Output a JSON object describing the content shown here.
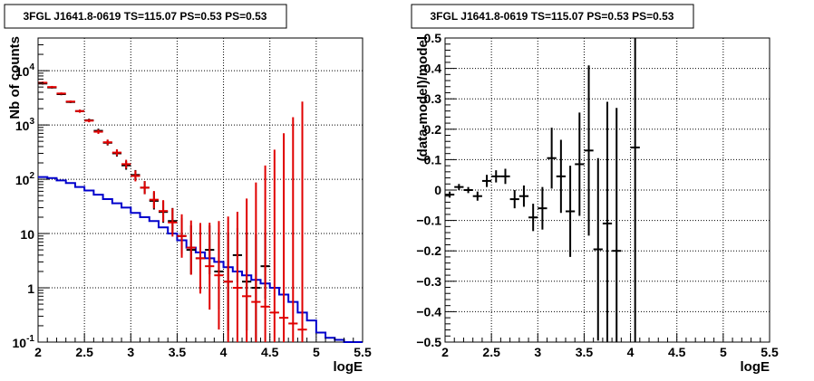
{
  "colors": {
    "model": "#e00000",
    "data": "#000000",
    "background": "#0000cc"
  },
  "chart_data": [
    {
      "type": "line",
      "title": "3FGL J1641.8-0619 TS=115.07 PS=0.53 PS=0.53",
      "xlabel": "logE",
      "ylabel": "Nb of counts",
      "xlim": [
        2,
        5.5
      ],
      "ylim": [
        0.1,
        40000
      ],
      "yscale": "log",
      "grid": true,
      "x_ticks": [
        "2",
        "2.5",
        "3",
        "3.5",
        "4",
        "4.5",
        "5",
        "5.5"
      ],
      "y_ticks": [
        "10^-1",
        "1",
        "10",
        "10^2",
        "10^3",
        "10^4"
      ],
      "series": [
        {
          "style": "step",
          "x": [
            2.0,
            2.1,
            2.2,
            2.3,
            2.4,
            2.5,
            2.6,
            2.7,
            2.8,
            2.9,
            3.0,
            3.1,
            3.2,
            3.3,
            3.4,
            3.5,
            3.6,
            3.7,
            3.8,
            3.9,
            4.0,
            4.1,
            4.2,
            4.3,
            4.4,
            4.5,
            4.6,
            4.7,
            4.8,
            4.9,
            5.0,
            5.1,
            5.2,
            5.3,
            5.4
          ],
          "y": [
            110,
            105,
            95,
            85,
            72,
            62,
            52,
            43,
            36,
            30,
            24,
            20,
            17,
            13,
            10,
            7.5,
            5.5,
            4.5,
            3.5,
            3,
            2.4,
            2,
            1.7,
            1.4,
            1.2,
            1,
            0.75,
            0.55,
            0.35,
            0.25,
            0.15,
            0.12,
            0.11,
            0.1,
            0.1
          ]
        },
        {
          "style": "markers-error",
          "x": [
            2.05,
            2.15,
            2.25,
            2.35,
            2.45,
            2.55,
            2.65,
            2.75,
            2.85,
            2.95,
            3.05,
            3.15,
            3.25,
            3.35,
            3.45,
            3.55,
            3.65,
            3.75,
            3.85,
            3.95,
            4.05,
            4.15,
            4.25,
            4.35,
            4.45,
            4.55,
            4.65,
            4.75,
            4.85
          ],
          "y": [
            6000,
            5000,
            3800,
            2700,
            1800,
            1200,
            750,
            480,
            310,
            190,
            115,
            70,
            42,
            26,
            16,
            9,
            5.5,
            3.5,
            2.5,
            1.7,
            1.3,
            1,
            0.7,
            0.55,
            0.45,
            0.35,
            0.28,
            0.22,
            0.17
          ],
          "err": [
            0.02,
            0.02,
            0.02,
            0.02,
            0.03,
            0.03,
            0.04,
            0.05,
            0.06,
            0.08,
            0.1,
            0.12,
            0.16,
            0.2,
            0.26,
            0.4,
            0.5,
            0.65,
            0.8,
            1,
            1.2,
            1.4,
            1.8,
            2.2,
            2.6,
            3,
            3.4,
            3.8,
            4.2
          ]
        },
        {
          "style": "markers-error",
          "x": [
            2.05,
            2.15,
            2.25,
            2.35,
            2.45,
            2.55,
            2.65,
            2.75,
            2.85,
            2.95,
            3.05,
            3.15,
            3.25,
            3.35,
            3.45,
            3.55,
            3.65,
            3.75,
            3.85,
            3.95,
            4.05,
            4.15,
            4.25,
            4.35,
            4.45
          ],
          "y": [
            5800,
            4900,
            3700,
            2650,
            1800,
            1220,
            780,
            470,
            300,
            180,
            120,
            70,
            40,
            25,
            17,
            9,
            5,
            3.5,
            5,
            2,
            1.3,
            4,
            1.3,
            1,
            2.5
          ],
          "err": [
            0.02,
            0.02,
            0.02,
            0.02,
            0.02,
            0.03,
            0.04,
            0.05,
            0.06,
            0.08,
            0.09,
            0.12,
            0.16,
            0.2,
            0.24,
            0.33,
            0.45,
            0.55,
            0.45,
            0.7,
            0.9,
            0.5,
            0.9,
            1.0,
            0.6
          ]
        }
      ]
    },
    {
      "type": "scatter",
      "title": "3FGL J1641.8-0619 TS=115.07 PS=0.53 PS=0.53",
      "xlabel": "logE",
      "ylabel": "(data-model)/model",
      "xlim": [
        2,
        5.5
      ],
      "ylim": [
        -0.5,
        0.5
      ],
      "grid": true,
      "x_ticks": [
        "2",
        "2.5",
        "3",
        "3.5",
        "4",
        "4.5",
        "5",
        "5.5"
      ],
      "y_ticks": [
        "−0.5",
        "−0.4",
        "−0.3",
        "−0.2",
        "−0.1",
        "0",
        "0.1",
        "0.2",
        "0.3",
        "0.4",
        "0.5"
      ],
      "x": [
        2.05,
        2.15,
        2.25,
        2.35,
        2.45,
        2.55,
        2.65,
        2.75,
        2.85,
        2.95,
        3.05,
        3.15,
        3.25,
        3.35,
        3.45,
        3.55,
        3.65,
        3.75,
        3.85,
        4.05
      ],
      "y": [
        -0.015,
        0.01,
        0.0,
        -0.02,
        0.03,
        0.045,
        0.045,
        -0.03,
        -0.02,
        -0.09,
        -0.06,
        0.105,
        0.045,
        -0.07,
        0.085,
        0.13,
        -0.195,
        -0.11,
        -0.2,
        0.14
      ],
      "err": [
        0.01,
        0.01,
        0.01,
        0.015,
        0.02,
        0.02,
        0.025,
        0.03,
        0.035,
        0.045,
        0.07,
        0.1,
        0.12,
        0.15,
        0.17,
        0.28,
        0.3,
        0.4,
        0.47,
        0.9
      ]
    }
  ]
}
